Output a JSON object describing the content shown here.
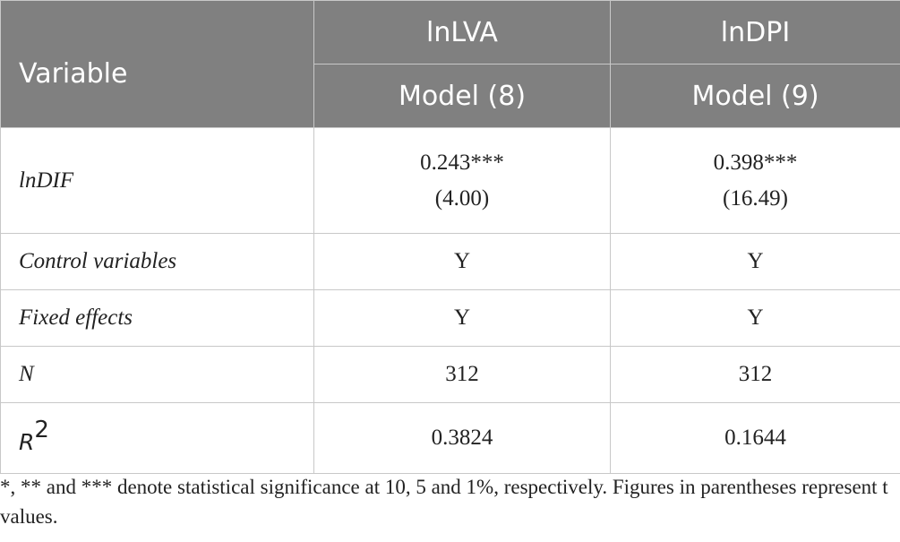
{
  "table": {
    "header": {
      "variable": "Variable",
      "col1": "lnLVA",
      "col2": "lnDPI",
      "model1": "Model (8)",
      "model2": "Model (9)"
    },
    "rows": [
      {
        "label": "lnDIF",
        "c1_coef": "0.243***",
        "c1_t": "(4.00)",
        "c2_coef": "0.398***",
        "c2_t": "(16.49)"
      },
      {
        "label": "Control variables",
        "c1": "Y",
        "c2": "Y"
      },
      {
        "label": "Fixed effects",
        "c1": "Y",
        "c2": "Y"
      },
      {
        "label": "N",
        "c1": "312",
        "c2": "312"
      },
      {
        "label_base": "R",
        "label_sup": "2",
        "c1": "0.3824",
        "c2": "0.1644"
      }
    ]
  },
  "note": "*, ** and *** denote statistical significance at 10, 5 and 1%, respectively. Figures in parentheses represent t values."
}
